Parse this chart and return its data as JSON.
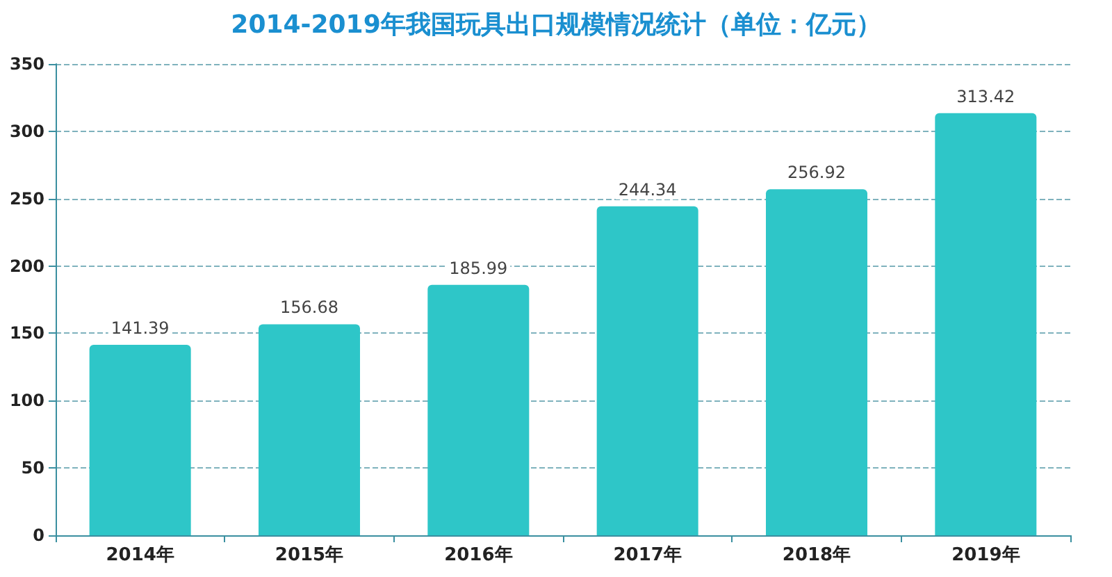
{
  "chart_data": {
    "type": "bar",
    "title": "2014-2019年我国玩具出口规模情况统计（单位：亿元）",
    "categories": [
      "2014年",
      "2015年",
      "2016年",
      "2017年",
      "2018年",
      "2019年"
    ],
    "values": [
      141.39,
      156.68,
      185.99,
      244.34,
      256.92,
      313.42
    ],
    "color": "#2ec6c8",
    "ylim": [
      0,
      350
    ],
    "yticks": [
      0,
      50,
      100,
      150,
      200,
      250,
      300,
      350
    ],
    "grid": "y",
    "data_labels": true
  }
}
